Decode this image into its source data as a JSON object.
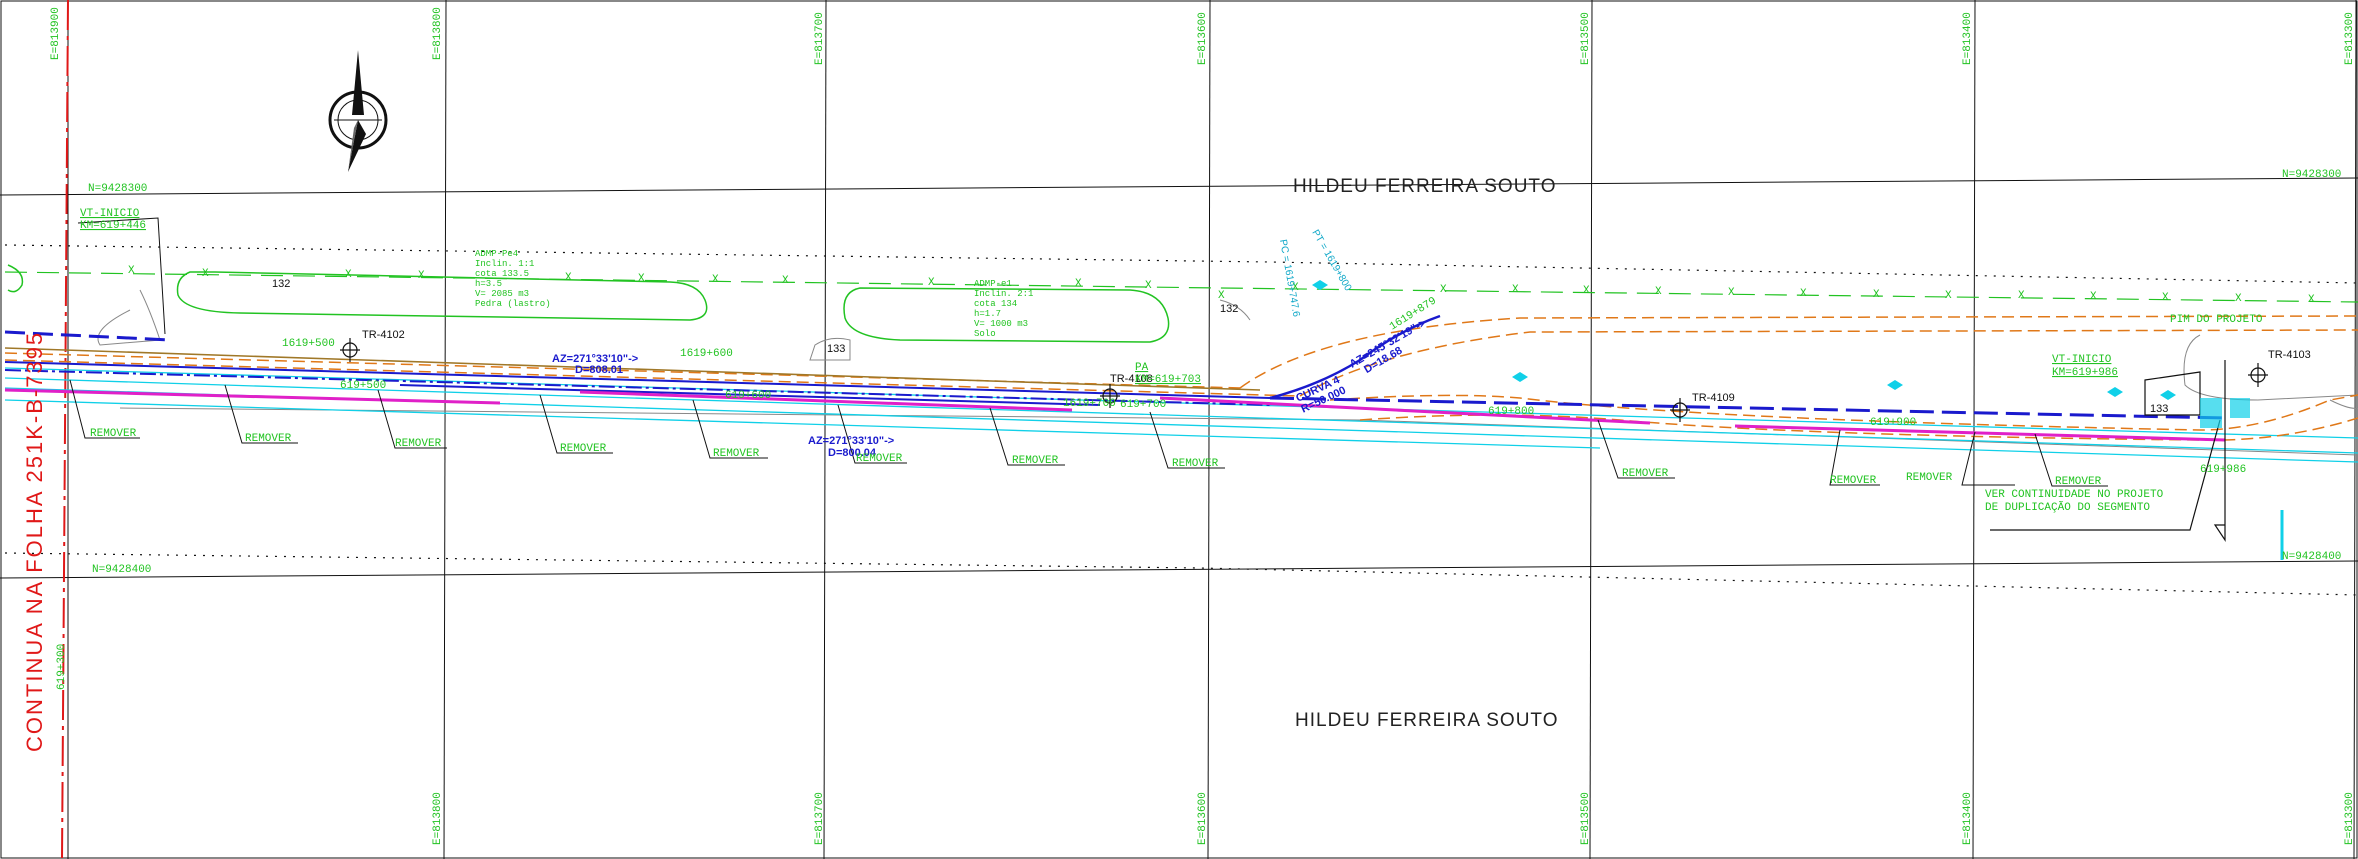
{
  "easting_top": [
    "E=813900",
    "E=813800",
    "E=813700",
    "E=813600",
    "E=813500",
    "E=813400",
    "E=813300"
  ],
  "easting_bottom": [
    "E=813800",
    "E=813700",
    "E=813600",
    "E=813500",
    "E=813400",
    "E=813300"
  ],
  "northing": {
    "n1_left": "N=9428300",
    "n1_right": "N=9428300",
    "n2_left": "N=9428400",
    "n2_right": "N=9428400"
  },
  "street_labels": [
    "HILDEU FERREIRA SOUTO",
    "HILDEU FERREIRA SOUTO"
  ],
  "continua_label": "CONTINUA NA FOLHA 251K-B-7395",
  "vt_start": {
    "title": "VT-INICIO",
    "km": "KM=619+446"
  },
  "vt_end": {
    "title": "VT-INICIO",
    "km": "KM=619+986"
  },
  "pa": {
    "title": "PA",
    "km": "KM=619+703"
  },
  "pim": "PIM DO PROJETO",
  "continuity_note": [
    "VER CONTINUIDADE NO PROJETO",
    "DE DUPLICAÇÃO DO SEGMENTO"
  ],
  "tr_labels": [
    "TR-4102",
    "TR-4108",
    "TR-4109",
    "TR-4103"
  ],
  "stations": [
    "1619+500",
    "619+500",
    "1619+600",
    "619+600",
    "1619+700",
    "619+700",
    "619+800",
    "619+900",
    "619+986",
    "1619+879"
  ],
  "azimuths": [
    "AZ=271°33'10\"->",
    "D=808.01",
    "AZ=271°33'10\"->",
    "D=800.04"
  ],
  "curve": [
    "CURVA 4",
    "R=50.000",
    "AZ=245°32'19\"->",
    "D=18.68"
  ],
  "curve_points": [
    "PC = 1619+747.6",
    "PT = 1619+800"
  ],
  "admp1": [
    "ADMP-Pe4",
    "Inclin. 1:1",
    "cota 133.5",
    "h=3.5",
    "V= 2085 m3",
    "Pedra (lastro)"
  ],
  "admp2": [
    "ADMP-e1",
    "Inclin. 2:1",
    "cota 134",
    "h=1.7",
    "V= 1000 m3",
    "Solo"
  ],
  "remover": "REMOVER",
  "side_station": "619+300",
  "contours": [
    "132",
    "133",
    "132",
    "133"
  ],
  "fence_marker": "X",
  "colors": {
    "grid": "#111111",
    "green": "#22c322",
    "blue": "#1a1acd",
    "magenta": "#e020c8",
    "cyan": "#10d0e8",
    "orange": "#e07818",
    "red": "#e01818"
  }
}
